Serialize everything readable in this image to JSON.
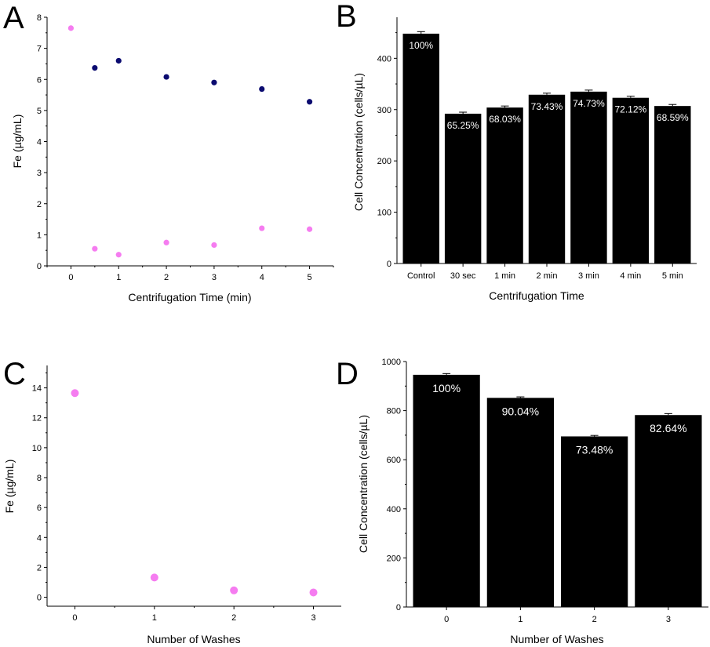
{
  "colors": {
    "dark_series": "#0b0b70",
    "light_series": "#f57cf0",
    "bar": "#000000"
  },
  "chart_data": [
    {
      "panel": "A",
      "type": "scatter",
      "xlabel": "Centrifugation Time (min)",
      "ylabel": "Fe (µg/mL)",
      "xlim": [
        -0.5,
        5.5
      ],
      "ylim": [
        0,
        8
      ],
      "xticks": [
        0,
        1,
        2,
        3,
        4,
        5
      ],
      "yticks": [
        0,
        1,
        2,
        3,
        4,
        5,
        6,
        7,
        8
      ],
      "series": [
        {
          "color": "#0b0b70",
          "points": [
            [
              0.5,
              6.37
            ],
            [
              1,
              6.6
            ],
            [
              2,
              6.08
            ],
            [
              3,
              5.9
            ],
            [
              4,
              5.69
            ],
            [
              5,
              5.28
            ]
          ]
        },
        {
          "color": "#f57cf0",
          "points": [
            [
              0,
              7.65
            ],
            [
              0.5,
              0.55
            ],
            [
              1,
              0.36
            ],
            [
              2,
              0.75
            ],
            [
              3,
              0.67
            ],
            [
              4,
              1.21
            ],
            [
              5,
              1.18
            ]
          ]
        }
      ]
    },
    {
      "panel": "B",
      "type": "bar",
      "xlabel": "Centrifugation Time",
      "ylabel": "Cell Concentration (cells/µL)",
      "ylim": [
        0,
        480
      ],
      "yticks": [
        0,
        100,
        200,
        300,
        400
      ],
      "categories": [
        "Control",
        "30 sec",
        "1 min",
        "2 min",
        "3 min",
        "4 min",
        "5 min"
      ],
      "values": [
        448,
        292,
        304,
        329,
        335,
        323,
        307
      ],
      "errors": [
        4,
        3,
        3,
        3,
        3,
        3,
        3
      ],
      "data_labels": [
        "100%",
        "65.25%",
        "68.03%",
        "73.43%",
        "74.73%",
        "72.12%",
        "68.59%"
      ]
    },
    {
      "panel": "C",
      "type": "scatter",
      "xlabel": "Number of Washes",
      "ylabel": "Fe (µg/mL)",
      "xlim": [
        -0.35,
        3.35
      ],
      "ylim": [
        -0.6,
        15.5
      ],
      "xticks": [
        0,
        1,
        2,
        3
      ],
      "yticks": [
        0,
        2,
        4,
        6,
        8,
        10,
        12,
        14
      ],
      "series": [
        {
          "color": "#f57cf0",
          "points": [
            [
              0,
              13.65
            ],
            [
              1,
              1.32
            ],
            [
              2,
              0.46
            ],
            [
              3,
              0.32
            ]
          ]
        }
      ]
    },
    {
      "panel": "D",
      "type": "bar",
      "xlabel": "Number of Washes",
      "ylabel": "Cell Concentration (cells/µL)",
      "ylim": [
        0,
        1000
      ],
      "yticks": [
        0,
        200,
        400,
        600,
        800,
        1000
      ],
      "categories": [
        "0",
        "1",
        "2",
        "3"
      ],
      "values": [
        946,
        852,
        695,
        782
      ],
      "errors": [
        5,
        4,
        4,
        6
      ],
      "data_labels": [
        "100%",
        "90.04%",
        "73.48%",
        "82.64%"
      ]
    }
  ]
}
